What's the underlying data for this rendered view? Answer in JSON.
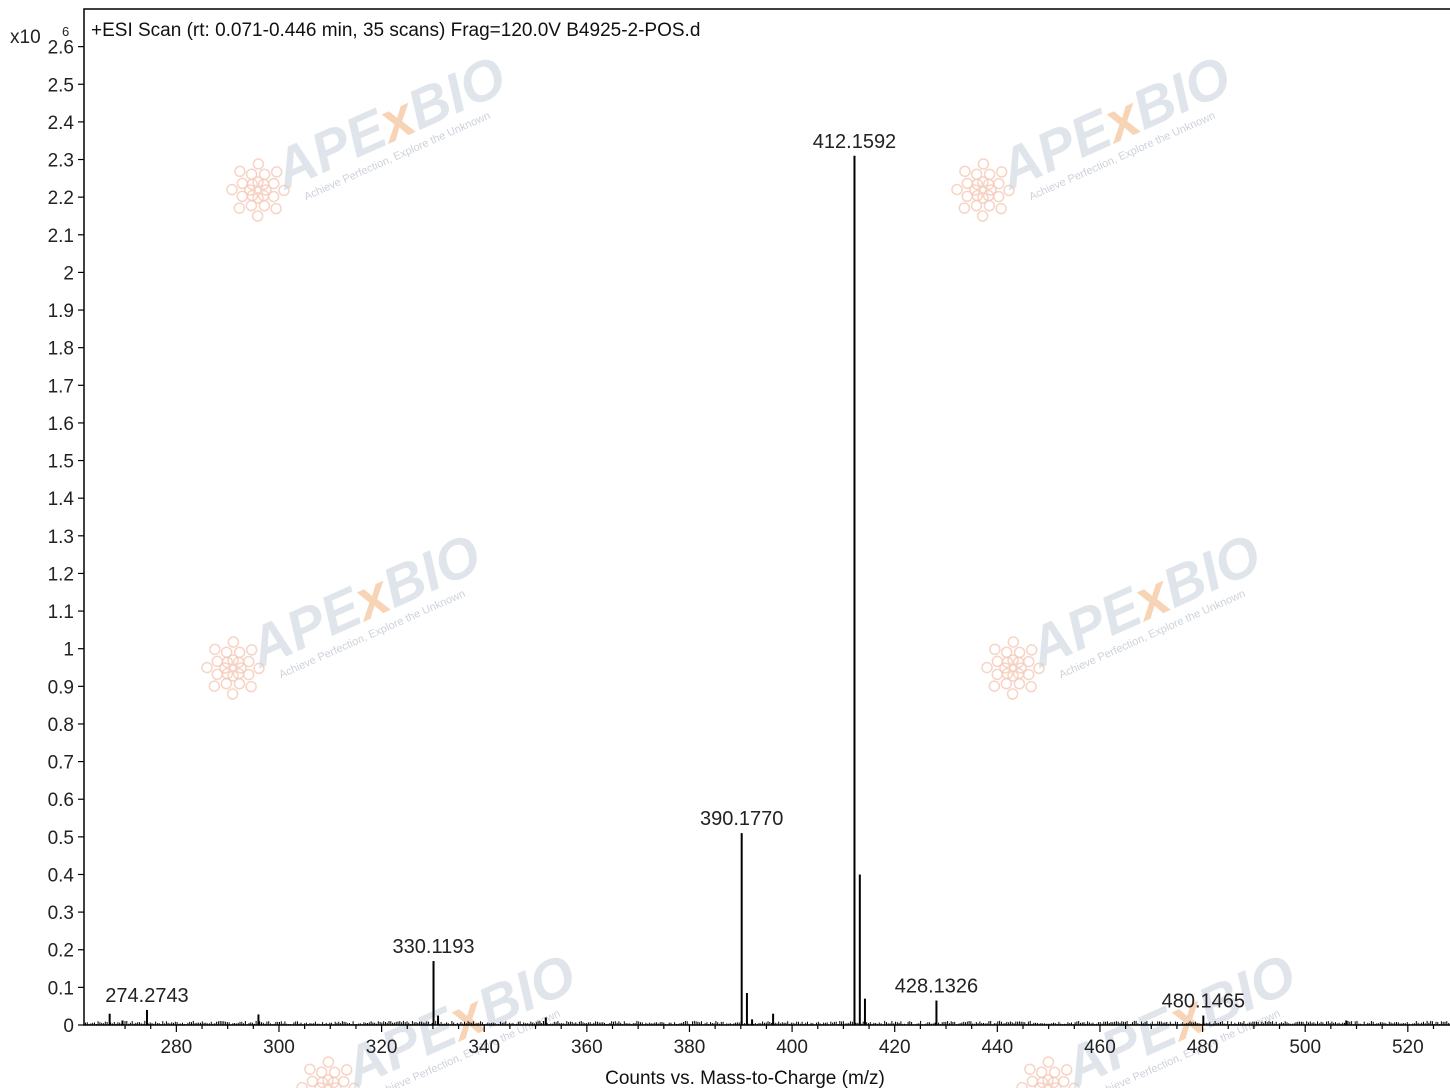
{
  "chart_data": {
    "type": "bar",
    "title": "+ESI Scan (rt: 0.071-0.446 min, 35 scans) Frag=120.0V B4925-2-POS.d",
    "xlabel": "Counts vs. Mass-to-Charge (m/z)",
    "ylabel": "",
    "y_multiplier_label": "x10",
    "y_multiplier_exponent": "6",
    "xlim": [
      262,
      529
    ],
    "ylim": [
      0,
      2.7
    ],
    "x_ticks": [
      "280",
      "300",
      "320",
      "340",
      "360",
      "380",
      "400",
      "420",
      "440",
      "460",
      "480",
      "500",
      "520"
    ],
    "y_ticks": [
      "0",
      "0.1",
      "0.2",
      "0.3",
      "0.4",
      "0.5",
      "0.6",
      "0.7",
      "0.8",
      "0.9",
      "1",
      "1.1",
      "1.2",
      "1.3",
      "1.4",
      "1.5",
      "1.6",
      "1.7",
      "1.8",
      "1.9",
      "2",
      "2.1",
      "2.2",
      "2.3",
      "2.4",
      "2.5",
      "2.6"
    ],
    "grid": false,
    "peaks": [
      {
        "mz": 267.0,
        "intensity": 0.03
      },
      {
        "mz": 269.5,
        "intensity": 0.012
      },
      {
        "mz": 274.2743,
        "intensity": 0.04,
        "label": "274.2743"
      },
      {
        "mz": 296.0,
        "intensity": 0.028
      },
      {
        "mz": 330.1193,
        "intensity": 0.17,
        "label": "330.1193"
      },
      {
        "mz": 331.0,
        "intensity": 0.025
      },
      {
        "mz": 352.0,
        "intensity": 0.02
      },
      {
        "mz": 390.177,
        "intensity": 0.51,
        "label": "390.1770"
      },
      {
        "mz": 391.2,
        "intensity": 0.085
      },
      {
        "mz": 392.2,
        "intensity": 0.015
      },
      {
        "mz": 396.3,
        "intensity": 0.03
      },
      {
        "mz": 412.1592,
        "intensity": 2.31,
        "label": "412.1592"
      },
      {
        "mz": 413.2,
        "intensity": 0.4
      },
      {
        "mz": 414.2,
        "intensity": 0.07
      },
      {
        "mz": 428.1326,
        "intensity": 0.065,
        "label": "428.1326"
      },
      {
        "mz": 480.1465,
        "intensity": 0.025,
        "label": "480.1465"
      },
      {
        "mz": 508.0,
        "intensity": 0.012
      }
    ]
  },
  "watermark": {
    "brand": "APE",
    "brand_x": "x",
    "brand_end": "BIO",
    "tagline": "Achieve Perfection, Explore the Unknown",
    "colors": {
      "text": "#c8d0dc",
      "accent": "#f2b27a",
      "logo": "#f5c9b8"
    }
  },
  "colors": {
    "axis": "#000000",
    "peak": "#000000",
    "background": "#ffffff"
  }
}
